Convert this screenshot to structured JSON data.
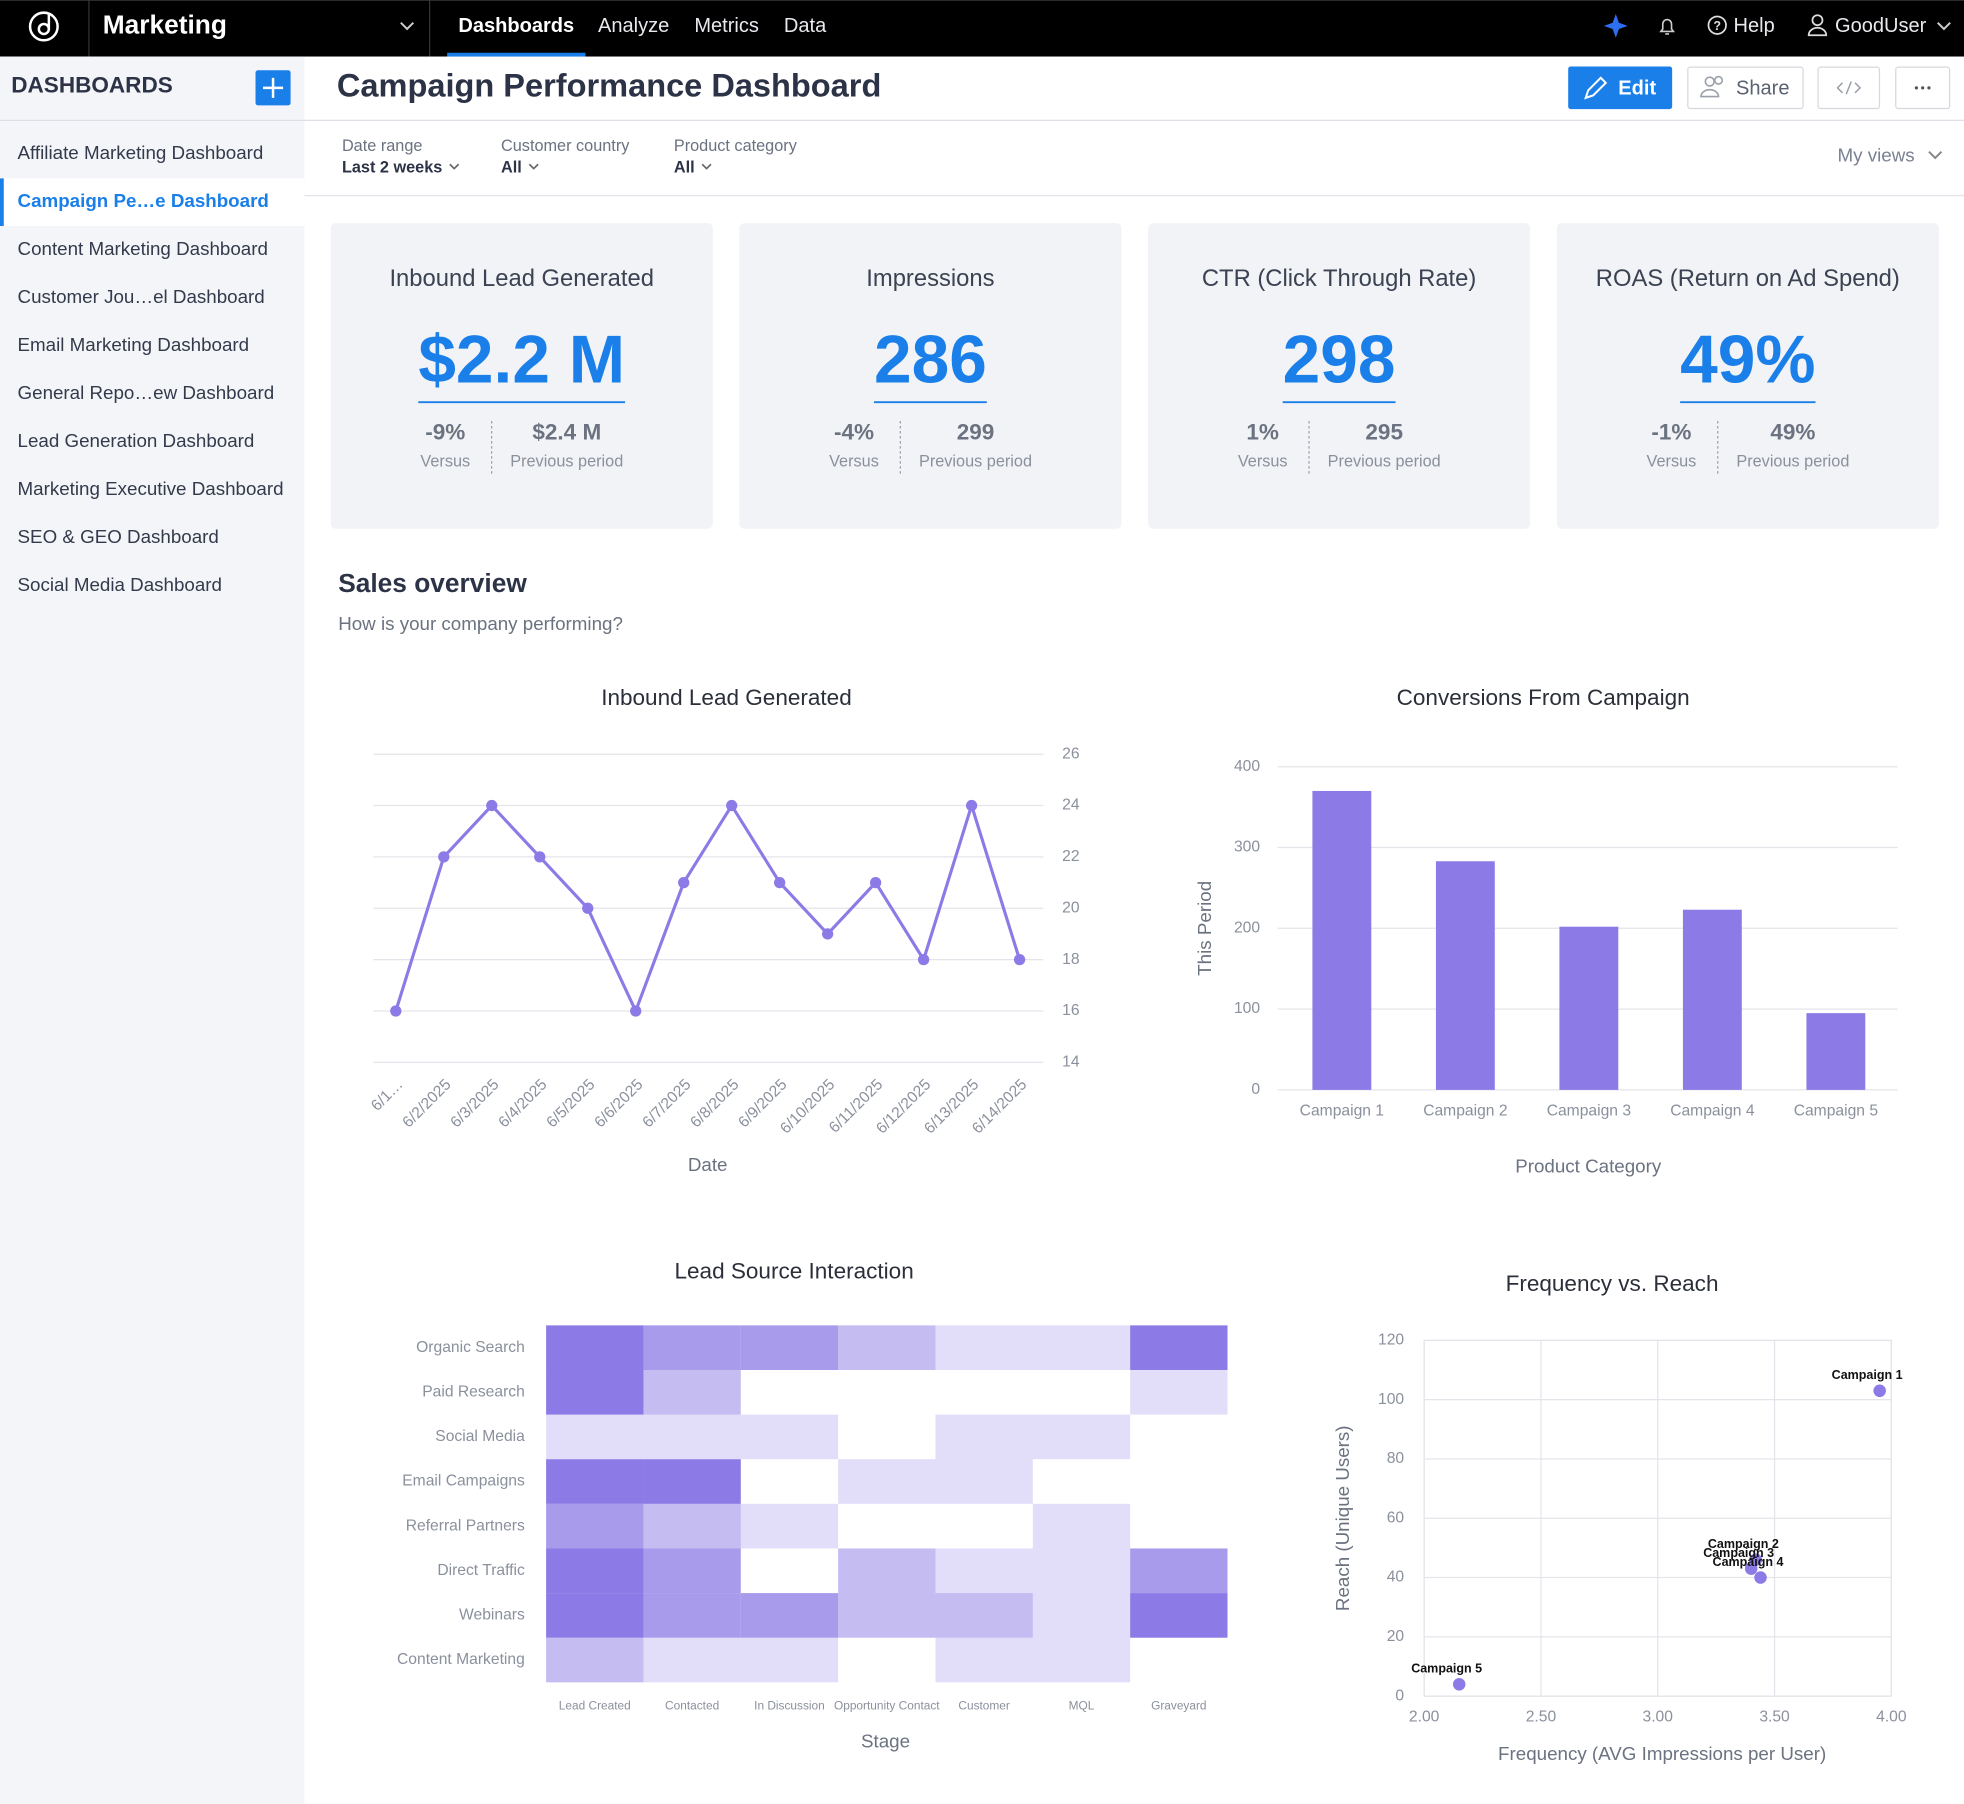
{
  "nav": {
    "app": "Marketing",
    "tabs": [
      "Dashboards",
      "Analyze",
      "Metrics",
      "Data"
    ],
    "active": 0,
    "help": "Help",
    "user": "GoodUser"
  },
  "sidebar": {
    "title": "DASHBOARDS",
    "active": 1,
    "items": [
      "Affiliate Marketing Dashboard",
      "Campaign Pe…e Dashboard",
      "Content Marketing Dashboard",
      "Customer Jou…el Dashboard",
      "Email Marketing Dashboard",
      "General Repo…ew Dashboard",
      "Lead Generation Dashboard",
      "Marketing Executive Dashboard",
      "SEO & GEO Dashboard",
      "Social Media Dashboard"
    ]
  },
  "header": {
    "title": "Campaign Performance Dashboard",
    "edit": "Edit",
    "share": "Share"
  },
  "filters": [
    {
      "label": "Date range",
      "value": "Last 2 weeks"
    },
    {
      "label": "Customer country",
      "value": "All"
    },
    {
      "label": "Product category",
      "value": "All"
    }
  ],
  "my_views": "My views",
  "kpis": [
    {
      "title": "Inbound Lead Generated",
      "value": "$2.2 M",
      "change": "-9%",
      "change_label": "Versus",
      "previous": "$2.4 M",
      "previous_label": "Previous period"
    },
    {
      "title": "Impressions",
      "value": "286",
      "change": "-4%",
      "change_label": "Versus",
      "previous": "299",
      "previous_label": "Previous period"
    },
    {
      "title": "CTR (Click Through Rate)",
      "value": "298",
      "change": "1%",
      "change_label": "Versus",
      "previous": "295",
      "previous_label": "Previous period"
    },
    {
      "title": "ROAS (Return on Ad Spend)",
      "value": "49%",
      "change": "-1%",
      "change_label": "Versus",
      "previous": "49%",
      "previous_label": "Previous period"
    }
  ],
  "section": {
    "title": "Sales overview",
    "subtitle": "How is your company performing?"
  },
  "chart_data": [
    {
      "type": "line",
      "title": "Inbound Lead Generated",
      "x_label": "Date",
      "color": "#8c7ae6",
      "grid": true,
      "categories": [
        "6/1…",
        "6/2/2025",
        "6/3/2025",
        "6/4/2025",
        "6/5/2025",
        "6/6/2025",
        "6/7/2025",
        "6/8/2025",
        "6/9/2025",
        "6/10/2025",
        "6/11/2025",
        "6/12/2025",
        "6/13/2025",
        "6/14/2025"
      ],
      "values": [
        16,
        22,
        24,
        22,
        20,
        16,
        21,
        24,
        21,
        19,
        21,
        18,
        24,
        18
      ],
      "ylim": [
        14,
        26
      ],
      "yticks": [
        14,
        16,
        18,
        20,
        22,
        24,
        26
      ]
    },
    {
      "type": "bar",
      "title": "Conversions From Campaign",
      "x_label": "Product Category",
      "y_label": "This Period",
      "color": "#8c7ae6",
      "grid": true,
      "categories": [
        "Campaign 1",
        "Campaign 2",
        "Campaign 3",
        "Campaign 4",
        "Campaign 5"
      ],
      "values": [
        370,
        283,
        202,
        223,
        95
      ],
      "ylim": [
        0,
        400
      ],
      "yticks": [
        0,
        100,
        200,
        300,
        400
      ]
    },
    {
      "type": "heatmap",
      "title": "Lead Source Interaction",
      "x_label": "Stage",
      "color": "#8c7ae6",
      "x_categories": [
        "Lead Created",
        "Contacted",
        "In Discussion",
        "Opportunity Contact",
        "Customer",
        "MQL",
        "Graveyard"
      ],
      "y_categories": [
        "Organic Search",
        "Paid Research",
        "Social Media",
        "Email Campaigns",
        "Referral Partners",
        "Direct Traffic",
        "Webinars",
        "Content Marketing"
      ],
      "values": [
        [
          4,
          3,
          3,
          2,
          1,
          1,
          4
        ],
        [
          4,
          2,
          0,
          0,
          0,
          0,
          1
        ],
        [
          1,
          1,
          1,
          0,
          1,
          1,
          0
        ],
        [
          4,
          4,
          0,
          1,
          1,
          0,
          0
        ],
        [
          3,
          2,
          1,
          0,
          0,
          1,
          0
        ],
        [
          4,
          3,
          0,
          2,
          1,
          1,
          3
        ],
        [
          4,
          3,
          3,
          2,
          2,
          1,
          4
        ],
        [
          2,
          1,
          1,
          0,
          1,
          1,
          0
        ]
      ]
    },
    {
      "type": "scatter",
      "title": "Frequency vs. Reach",
      "x_label": "Frequency (AVG Impressions per User)",
      "y_label": "Reach (Unique Users)",
      "color": "#8c7ae6",
      "grid": true,
      "points": [
        {
          "name": "Campaign 1",
          "x": 3.95,
          "y": 103
        },
        {
          "name": "Campaign 2",
          "x": 3.42,
          "y": 46
        },
        {
          "name": "Campaign 3",
          "x": 3.4,
          "y": 43
        },
        {
          "name": "Campaign 4",
          "x": 3.44,
          "y": 40
        },
        {
          "name": "Campaign 5",
          "x": 2.15,
          "y": 4
        }
      ],
      "xlim": [
        2,
        4
      ],
      "xticks": [
        {
          "value": 2,
          "label": "2.00"
        },
        {
          "value": 2.5,
          "label": "2.50"
        },
        {
          "value": 3,
          "label": "3.00"
        },
        {
          "value": 3.5,
          "label": "3.50"
        },
        {
          "value": 4,
          "label": "4.00"
        }
      ],
      "ylim": [
        0,
        120
      ],
      "yticks": [
        0,
        20,
        40,
        60,
        80,
        100,
        120
      ]
    }
  ]
}
